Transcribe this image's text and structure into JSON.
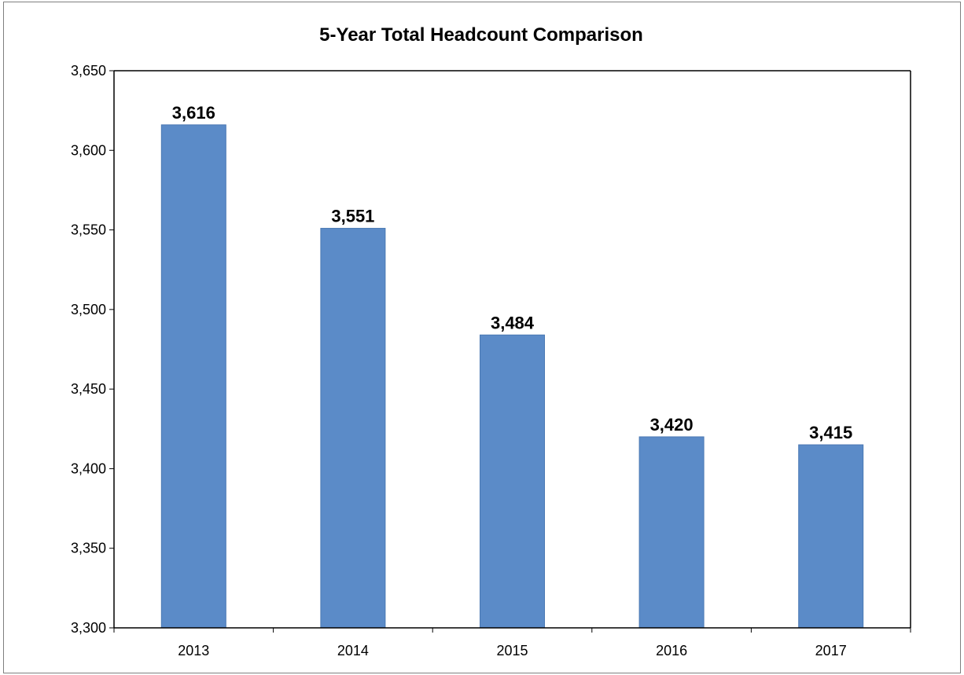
{
  "chart_data": {
    "type": "bar",
    "title": "5-Year Total Headcount Comparison",
    "categories": [
      "2013",
      "2014",
      "2015",
      "2016",
      "2017"
    ],
    "values": [
      3616,
      3551,
      3484,
      3420,
      3415
    ],
    "value_labels": [
      "3,616",
      "3,551",
      "3,484",
      "3,420",
      "3,415"
    ],
    "xlabel": "",
    "ylabel": "",
    "ylim": [
      3300,
      3650
    ],
    "y_ticks": [
      3300,
      3350,
      3400,
      3450,
      3500,
      3550,
      3600,
      3650
    ],
    "y_tick_labels": [
      "3,300",
      "3,350",
      "3,400",
      "3,450",
      "3,500",
      "3,550",
      "3,600",
      "3,650"
    ],
    "grid": false,
    "legend": "none",
    "colors": {
      "bar": "#5b8bc8",
      "bar_edge": "#4a78b3",
      "axis": "#000000"
    }
  }
}
